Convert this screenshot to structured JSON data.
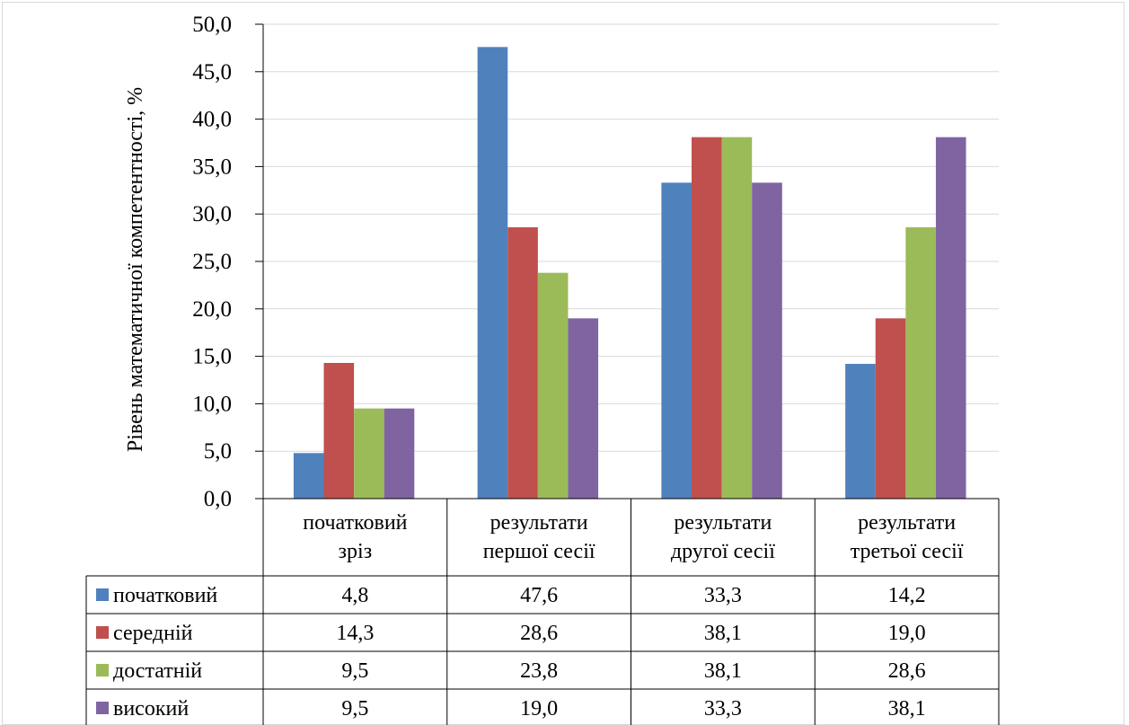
{
  "chart_data": {
    "type": "bar",
    "categories": [
      [
        "початковий",
        "зріз"
      ],
      [
        "результати",
        "першої сесії"
      ],
      [
        "результати",
        "другої сесії"
      ],
      [
        "результати",
        "третьої сесії"
      ]
    ],
    "series": [
      {
        "name": "початковий",
        "color": "#4f81bd",
        "values": [
          4.8,
          47.6,
          33.3,
          14.2
        ],
        "labels": [
          "4,8",
          "47,6",
          "33,3",
          "14,2"
        ]
      },
      {
        "name": "середній",
        "color": "#c0504d",
        "values": [
          14.3,
          28.6,
          38.1,
          19.0
        ],
        "labels": [
          "14,3",
          "28,6",
          "38,1",
          "19,0"
        ]
      },
      {
        "name": "достатній",
        "color": "#9bbb59",
        "values": [
          9.5,
          23.8,
          38.1,
          28.6
        ],
        "labels": [
          "9,5",
          "23,8",
          "38,1",
          "28,6"
        ]
      },
      {
        "name": "високий",
        "color": "#8064a2",
        "values": [
          9.5,
          19.0,
          33.3,
          38.1
        ],
        "labels": [
          "9,5",
          "19,0",
          "33,3",
          "38,1"
        ]
      }
    ],
    "ylabel": "Рівень математичної компетентності, %",
    "ylim": [
      0,
      50
    ],
    "yticks": [
      0,
      5,
      10,
      15,
      20,
      25,
      30,
      35,
      40,
      45,
      50
    ],
    "ytick_labels": [
      "0,0",
      "5,0",
      "10,0",
      "15,0",
      "20,0",
      "25,0",
      "30,0",
      "35,0",
      "40,0",
      "45,0",
      "50,0"
    ],
    "grid": true,
    "legend": "data-table"
  }
}
